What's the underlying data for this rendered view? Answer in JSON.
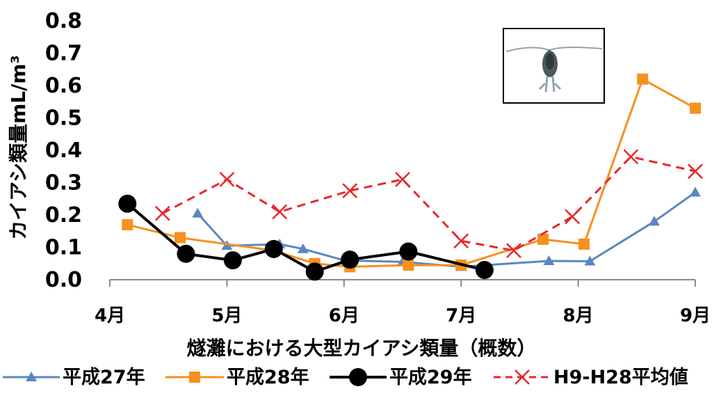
{
  "chart_data": {
    "type": "line",
    "title": "",
    "xlabel": "燧灘における大型カイアシ類量（概数）",
    "ylabel": "カイアシ類量mL/m³",
    "ylim": [
      0,
      0.8
    ],
    "y_ticks": [
      "0.0",
      "0.1",
      "0.2",
      "0.3",
      "0.4",
      "0.5",
      "0.6",
      "0.7",
      "0.8"
    ],
    "x_ticks": [
      "4月",
      "5月",
      "6月",
      "7月",
      "8月",
      "9月"
    ],
    "x_unit": "month (4 = 4月 … 9 = 9月)",
    "grid": false,
    "legend_position": "bottom",
    "inset_image": "copepod-photo",
    "series": [
      {
        "name": "平成27年",
        "color": "#5B87C1",
        "marker": "triangle",
        "line": "solid",
        "points": [
          [
            4.75,
            0.205
          ],
          [
            5.0,
            0.105
          ],
          [
            5.45,
            0.11
          ],
          [
            5.65,
            0.095
          ],
          [
            6.0,
            0.06
          ],
          [
            6.5,
            0.055
          ],
          [
            7.0,
            0.04
          ],
          [
            7.75,
            0.058
          ],
          [
            8.1,
            0.057
          ],
          [
            8.65,
            0.18
          ],
          [
            9.0,
            0.27
          ]
        ]
      },
      {
        "name": "平成28年",
        "color": "#F7901E",
        "marker": "square",
        "line": "solid",
        "points": [
          [
            4.15,
            0.17
          ],
          [
            4.6,
            0.13
          ],
          [
            5.4,
            0.09
          ],
          [
            5.75,
            0.05
          ],
          [
            6.05,
            0.04
          ],
          [
            6.55,
            0.045
          ],
          [
            7.0,
            0.045
          ],
          [
            7.7,
            0.125
          ],
          [
            8.05,
            0.11
          ],
          [
            8.55,
            0.62
          ],
          [
            9.0,
            0.53
          ]
        ]
      },
      {
        "name": "平成29年",
        "color": "#000000",
        "marker": "circle",
        "line": "solid",
        "points": [
          [
            4.15,
            0.235
          ],
          [
            4.65,
            0.08
          ],
          [
            5.05,
            0.06
          ],
          [
            5.4,
            0.095
          ],
          [
            5.75,
            0.025
          ],
          [
            6.05,
            0.062
          ],
          [
            6.55,
            0.087
          ],
          [
            7.2,
            0.03
          ]
        ]
      },
      {
        "name": "H9-H28平均値",
        "color": "#E8262B",
        "marker": "x",
        "line": "dashed",
        "points": [
          [
            4.45,
            0.205
          ],
          [
            5.0,
            0.31
          ],
          [
            5.45,
            0.21
          ],
          [
            6.05,
            0.275
          ],
          [
            6.5,
            0.31
          ],
          [
            7.0,
            0.12
          ],
          [
            7.45,
            0.09
          ],
          [
            7.95,
            0.195
          ],
          [
            8.45,
            0.38
          ],
          [
            9.0,
            0.335
          ]
        ]
      }
    ]
  }
}
